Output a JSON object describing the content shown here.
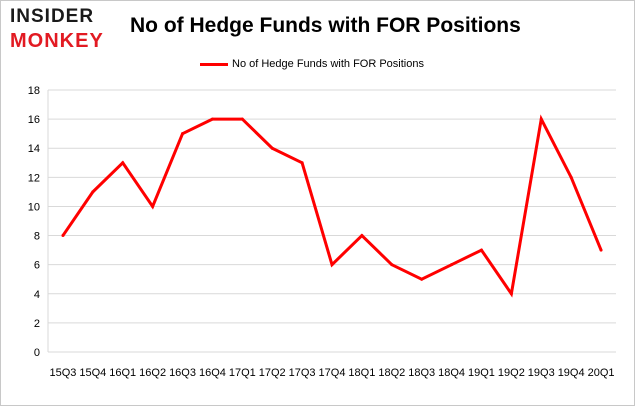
{
  "logo": {
    "line1": "INSIDER",
    "line2": "MONKEY"
  },
  "chart_data": {
    "type": "line",
    "title": "No of Hedge Funds with FOR Positions",
    "xlabel": "",
    "ylabel": "",
    "ylim": [
      0,
      18
    ],
    "yticks": [
      0,
      2,
      4,
      6,
      8,
      10,
      12,
      14,
      16,
      18
    ],
    "grid": true,
    "legend_position": "top-center",
    "categories": [
      "15Q3",
      "15Q4",
      "16Q1",
      "16Q2",
      "16Q3",
      "16Q4",
      "17Q1",
      "17Q2",
      "17Q3",
      "17Q4",
      "18Q1",
      "18Q2",
      "18Q3",
      "18Q4",
      "19Q1",
      "19Q2",
      "19Q3",
      "19Q4",
      "20Q1"
    ],
    "series": [
      {
        "name": "No of Hedge Funds with FOR Positions",
        "color": "#ff0000",
        "values": [
          8,
          11,
          13,
          10,
          15,
          16,
          16,
          14,
          13,
          6,
          8,
          6,
          5,
          6,
          7,
          4,
          16,
          12,
          7
        ]
      }
    ]
  }
}
